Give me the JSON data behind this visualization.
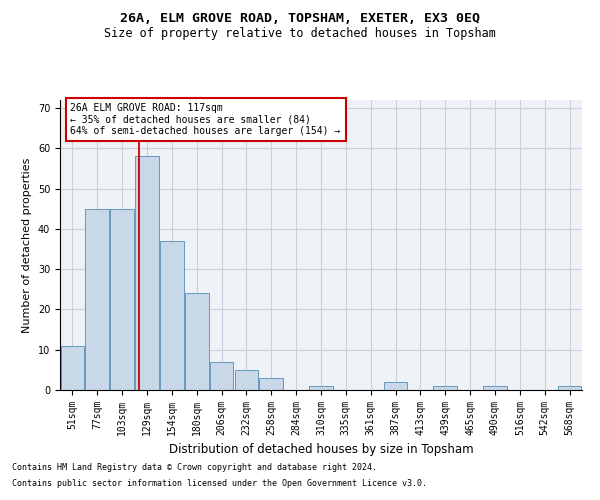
{
  "title1": "26A, ELM GROVE ROAD, TOPSHAM, EXETER, EX3 0EQ",
  "title2": "Size of property relative to detached houses in Topsham",
  "xlabel": "Distribution of detached houses by size in Topsham",
  "ylabel": "Number of detached properties",
  "bar_labels": [
    "51sqm",
    "77sqm",
    "103sqm",
    "129sqm",
    "154sqm",
    "180sqm",
    "206sqm",
    "232sqm",
    "258sqm",
    "284sqm",
    "310sqm",
    "335sqm",
    "361sqm",
    "387sqm",
    "413sqm",
    "439sqm",
    "465sqm",
    "490sqm",
    "516sqm",
    "542sqm",
    "568sqm"
  ],
  "bar_values": [
    11,
    45,
    45,
    58,
    37,
    24,
    7,
    5,
    3,
    0,
    1,
    0,
    0,
    2,
    0,
    1,
    0,
    1,
    0,
    0,
    1
  ],
  "bar_color": "#c8d8e8",
  "bar_edge_color": "#6699bb",
  "ylim": [
    0,
    72
  ],
  "yticks": [
    0,
    10,
    20,
    30,
    40,
    50,
    60,
    70
  ],
  "vline_x": 2.66,
  "vline_color": "#cc0000",
  "annotation_box_text": "26A ELM GROVE ROAD: 117sqm\n← 35% of detached houses are smaller (84)\n64% of semi-detached houses are larger (154) →",
  "footnote1": "Contains HM Land Registry data © Crown copyright and database right 2024.",
  "footnote2": "Contains public sector information licensed under the Open Government Licence v3.0.",
  "background_color": "#eef2f6",
  "grid_color": "#c8cfd8",
  "title1_fontsize": 9.5,
  "title2_fontsize": 8.5,
  "xlabel_fontsize": 8.5,
  "ylabel_fontsize": 8,
  "tick_fontsize": 7,
  "annot_fontsize": 7,
  "footnote_fontsize": 6
}
